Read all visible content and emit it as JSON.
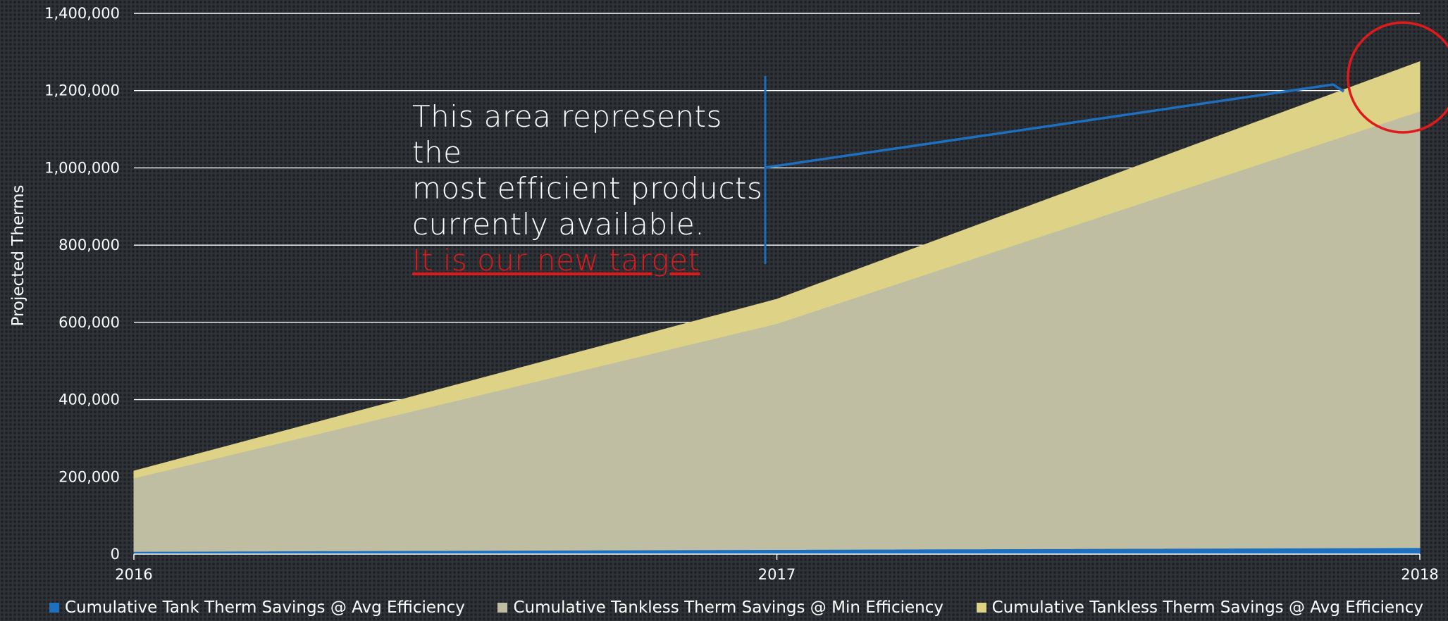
{
  "chart_data": {
    "type": "area",
    "ylabel": "Projected Therms",
    "xlabel": "",
    "x": [
      "2016",
      "2017",
      "2018"
    ],
    "y_ticks": [
      "0",
      "200,000",
      "400,000",
      "600,000",
      "800,000",
      "1,000,000",
      "1,200,000",
      "1,400,000"
    ],
    "ylim": [
      0,
      1400000
    ],
    "stacked": false,
    "grid": true,
    "legend_position": "bottom",
    "series": [
      {
        "name": "Cumulative Tank Therm Savings @ Avg Efficiency",
        "values": [
          5000,
          10000,
          15000
        ],
        "color": "#1f6fbf"
      },
      {
        "name": "Cumulative Tankless Therm Savings @ Min Efficiency",
        "values": [
          195000,
          595000,
          1145000
        ],
        "color": "#bfbea2"
      },
      {
        "name": "Cumulative Tankless Therm Savings @ Avg Efficiency",
        "values": [
          215000,
          660000,
          1275000
        ],
        "color": "#ddd286"
      }
    ],
    "annotation": {
      "text_lines": [
        "This area represents the",
        "most efficient products",
        "currently available."
      ],
      "target_text": "It is our new target",
      "target_color": "#e01a1a",
      "circle_color": "#e01a1a",
      "bracket_color": "#1f6fbf"
    }
  }
}
